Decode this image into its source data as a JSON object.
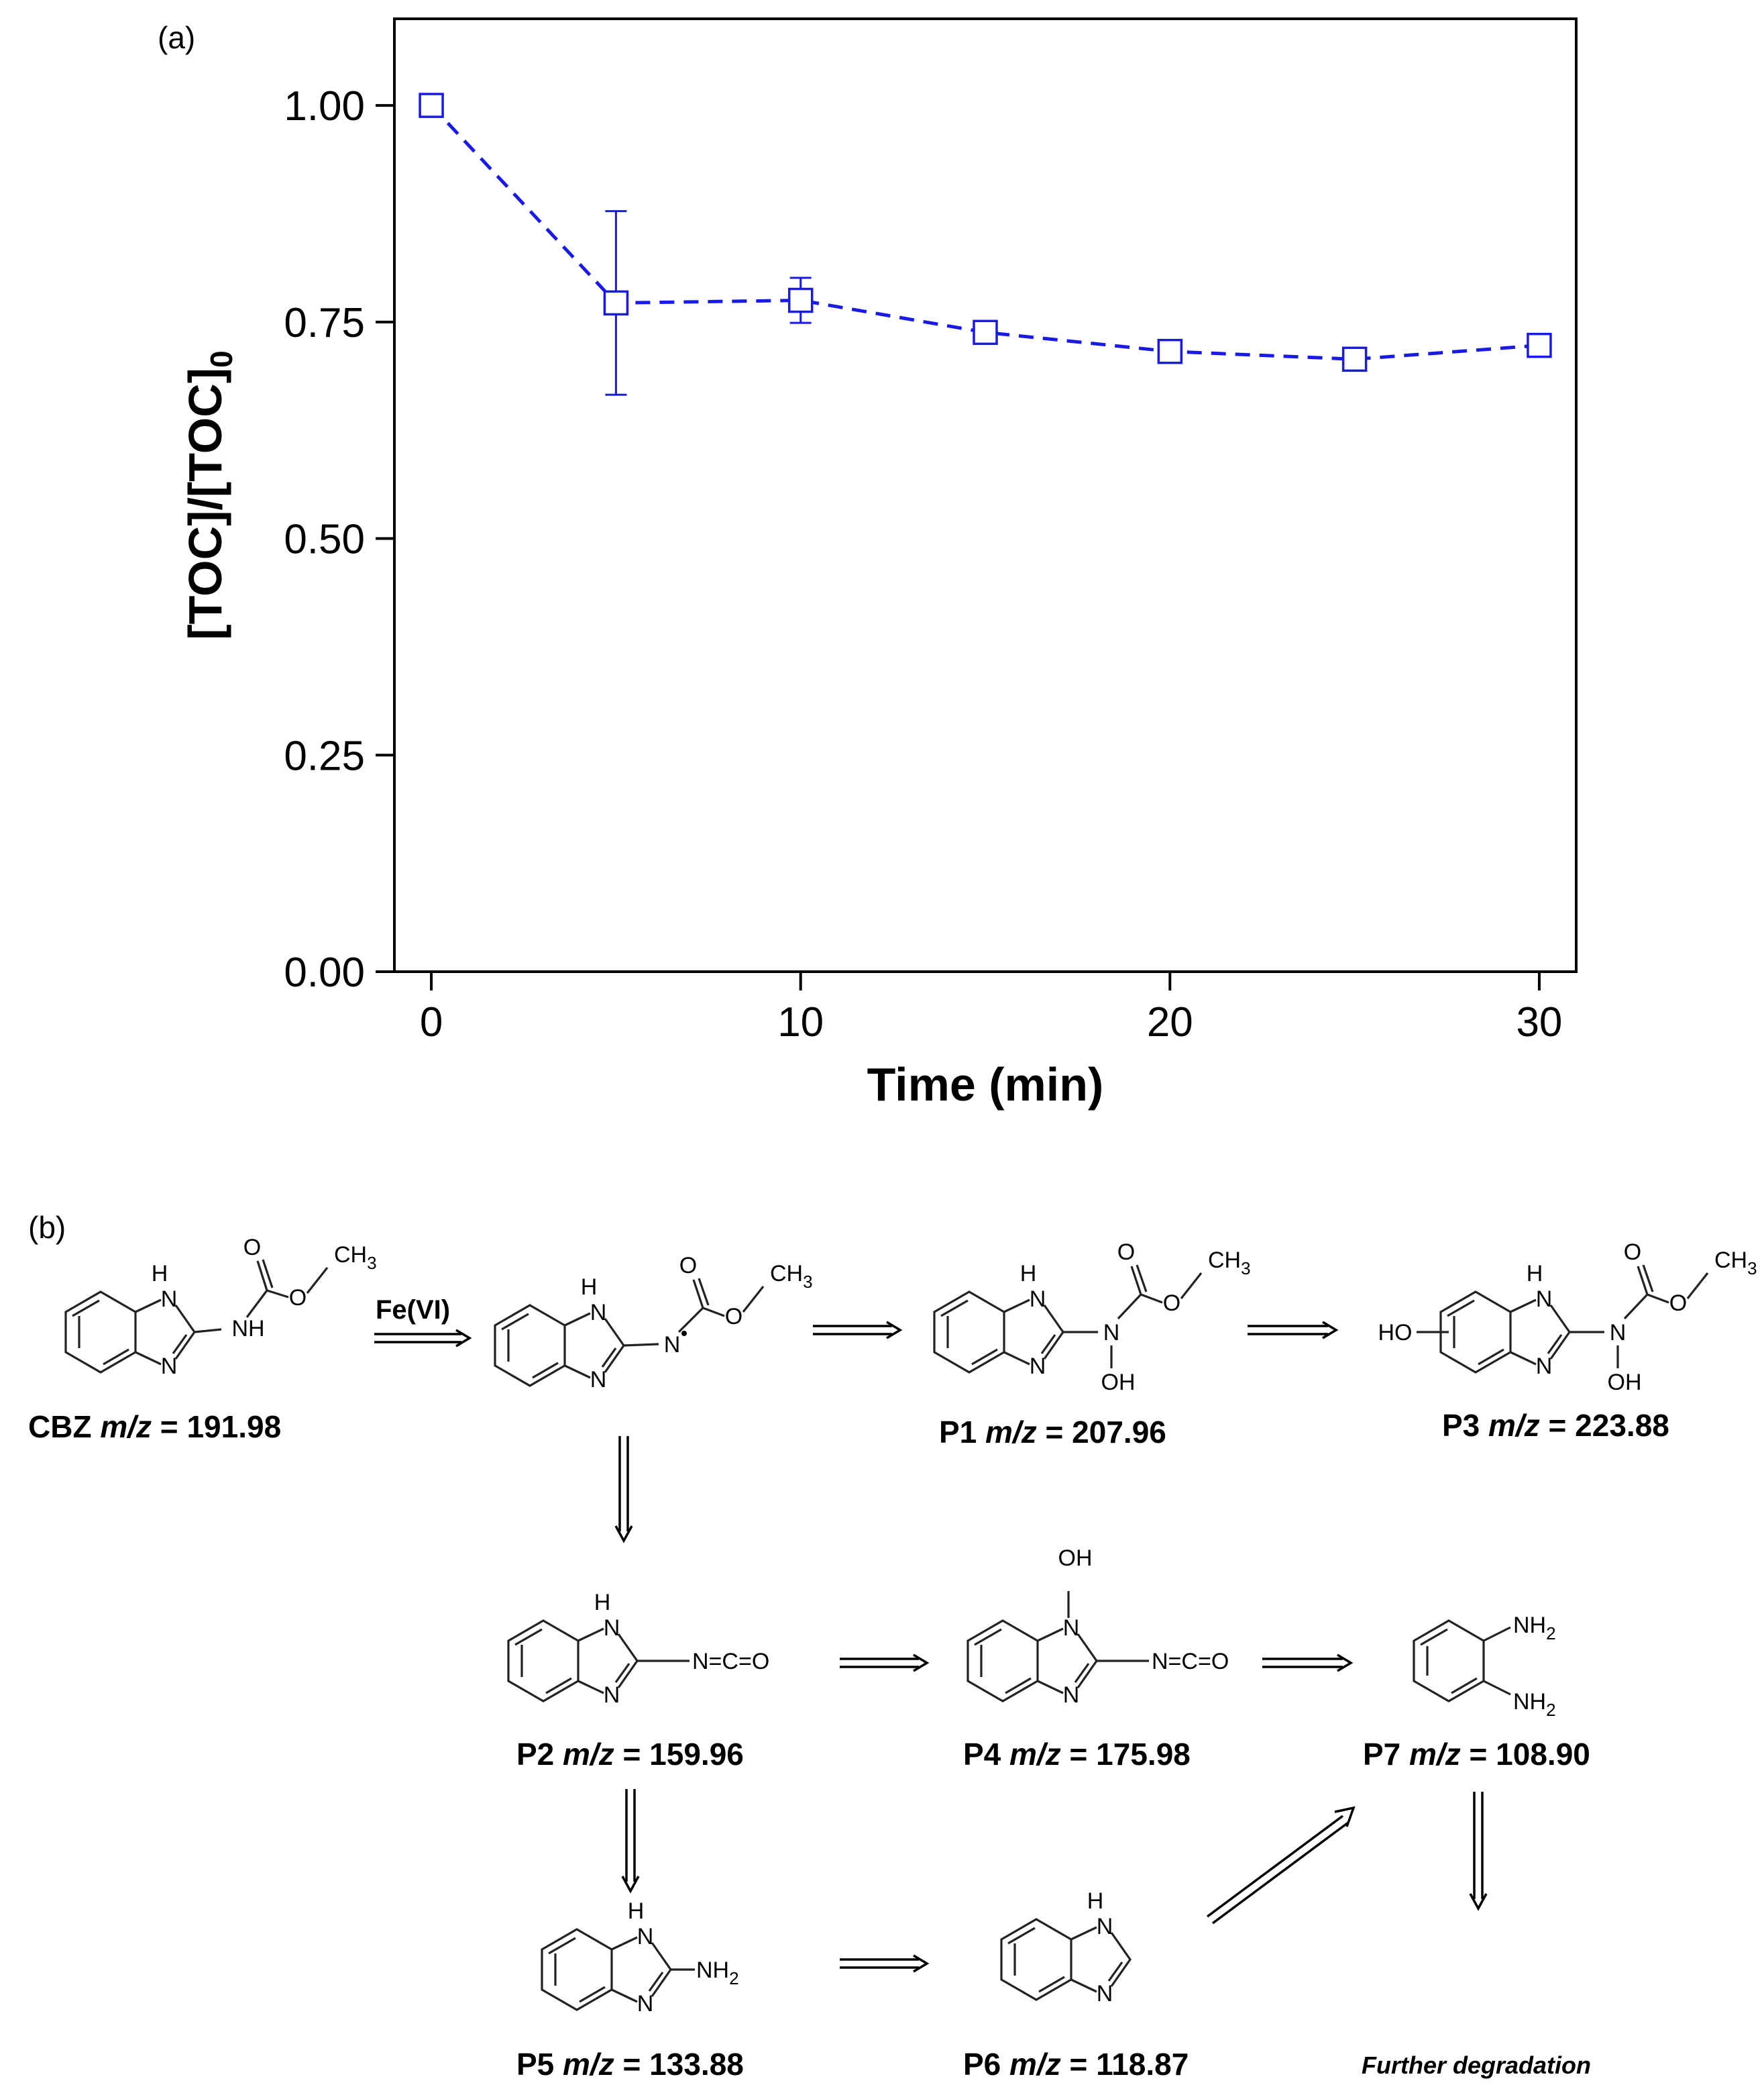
{
  "panel_a_label": "(a)",
  "panel_b_label": "(b)",
  "chart_data": {
    "type": "scatter",
    "xlabel": "Time (min)",
    "ylabel": "[TOC]/[TOC]",
    "ylabel_subscript": "0",
    "xlim": [
      -1,
      31
    ],
    "ylim": [
      0,
      1.1
    ],
    "x_ticks": [
      "0",
      "10",
      "20",
      "30"
    ],
    "y_ticks": [
      "0.00",
      "0.25",
      "0.50",
      "0.75",
      "1.00"
    ],
    "series": [
      {
        "x": [
          0,
          5,
          10,
          15,
          20,
          25,
          30
        ],
        "y": [
          1.0,
          0.772,
          0.775,
          0.738,
          0.716,
          0.707,
          0.723
        ],
        "yerr": [
          0.0,
          0.106,
          0.026,
          0.01,
          0.011,
          0.011,
          0.01
        ],
        "color": "#1a1ae6",
        "marker": "open-square",
        "line": "dashed"
      }
    ],
    "grid": false
  },
  "scheme": {
    "reagent": "Fe(VI)",
    "further": "Further degradation",
    "mz_label": "m/z",
    "compounds": [
      {
        "id": "CBZ",
        "mz": "191.98"
      },
      {
        "id": "P1",
        "mz": "207.96"
      },
      {
        "id": "P3",
        "mz": "223.88"
      },
      {
        "id": "P2",
        "mz": "159.96"
      },
      {
        "id": "P4",
        "mz": "175.98"
      },
      {
        "id": "P7",
        "mz": "108.90"
      },
      {
        "id": "P5",
        "mz": "133.88"
      },
      {
        "id": "P6",
        "mz": "118.87"
      }
    ],
    "atoms": {
      "H": "H",
      "N": "N",
      "NH": "NH",
      "O": "O",
      "CH3": "CH",
      "sub3": "3",
      "OH": "OH",
      "HO": "HO",
      "NCO": "N=C=O",
      "NH2": "NH",
      "sub2": "2"
    }
  }
}
